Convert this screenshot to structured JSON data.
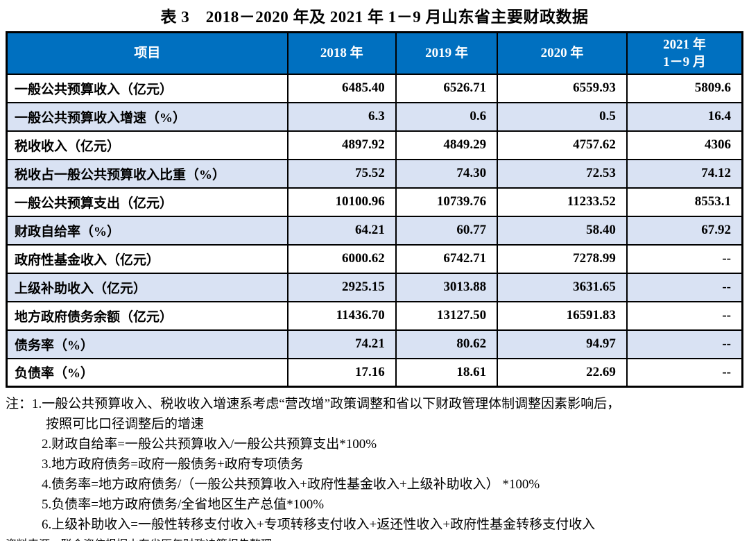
{
  "title": "表 3　2018－2020 年及 2021 年 1－9 月山东省主要财政数据",
  "colors": {
    "header_bg": "#0070C0",
    "alt_row_bg": "#D9E2F3",
    "border": "#000000",
    "header_text": "#FFFFFF"
  },
  "table": {
    "columns": [
      "项目",
      "2018 年",
      "2019 年",
      "2020 年",
      "2021 年\n1－9 月"
    ],
    "rows": [
      {
        "label": "一般公共预算收入（亿元）",
        "values": [
          "6485.40",
          "6526.71",
          "6559.93",
          "5809.6"
        ]
      },
      {
        "label": "一般公共预算收入增速（%）",
        "values": [
          "6.3",
          "0.6",
          "0.5",
          "16.4"
        ]
      },
      {
        "label": "税收收入（亿元）",
        "values": [
          "4897.92",
          "4849.29",
          "4757.62",
          "4306"
        ]
      },
      {
        "label": "税收占一般公共预算收入比重（%）",
        "values": [
          "75.52",
          "74.30",
          "72.53",
          "74.12"
        ]
      },
      {
        "label": "一般公共预算支出（亿元）",
        "values": [
          "10100.96",
          "10739.76",
          "11233.52",
          "8553.1"
        ]
      },
      {
        "label": "财政自给率（%）",
        "values": [
          "64.21",
          "60.77",
          "58.40",
          "67.92"
        ]
      },
      {
        "label": "政府性基金收入（亿元）",
        "values": [
          "6000.62",
          "6742.71",
          "7278.99",
          "--"
        ]
      },
      {
        "label": "上级补助收入（亿元）",
        "values": [
          "2925.15",
          "3013.88",
          "3631.65",
          "--"
        ]
      },
      {
        "label": "地方政府债务余额（亿元）",
        "values": [
          "11436.70",
          "13127.50",
          "16591.83",
          "--"
        ]
      },
      {
        "label": "债务率（%）",
        "values": [
          "74.21",
          "80.62",
          "94.97",
          "--"
        ]
      },
      {
        "label": "负债率（%）",
        "values": [
          "17.16",
          "18.61",
          "22.69",
          "--"
        ]
      }
    ]
  },
  "notes": {
    "lines": [
      {
        "text": "注：1.一般公共预算收入、税收收入增速系考虑“营改增”政策调整和省以下财政管理体制调整因素影响后，",
        "indent": "flush"
      },
      {
        "text": "按照可比口径调整后的增速",
        "indent": "cont"
      },
      {
        "text": "2.财政自给率=一般公共预算收入/一般公共预算支出*100%",
        "indent": "item"
      },
      {
        "text": "3.地方政府债务=政府一般债务+政府专项债务",
        "indent": "item"
      },
      {
        "text": "4.债务率=地方政府债务/（一般公共预算收入+政府性基金收入+上级补助收入） *100%",
        "indent": "item"
      },
      {
        "text": "5.负债率=地方政府债务/全省地区生产总值*100%",
        "indent": "item"
      },
      {
        "text": "6.上级补助收入=一般性转移支付收入+专项转移支付收入+返还性收入+政府性基金转移支付收入",
        "indent": "item"
      }
    ],
    "source": "资料来源：联合资信根据山东省历年财政决算报告整理"
  }
}
